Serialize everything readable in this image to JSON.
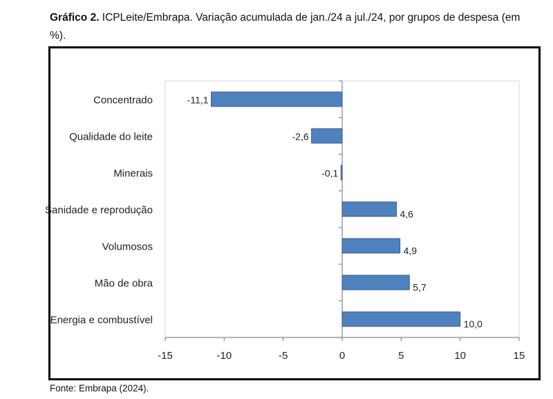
{
  "caption": {
    "label": "Gráfico 2.",
    "text": " ICPLeite/Embrapa. Variação acumulada de jan./24 a jul./24, por grupos de despesa (em %)."
  },
  "source": "Fonte: Embrapa (2024).",
  "colors": {
    "bar": "#4f81bd",
    "bar_border": "#385d8a"
  },
  "chart_data": {
    "type": "bar",
    "orientation": "horizontal",
    "categories": [
      "Concentrado",
      "Qualidade do leite",
      "Minerais",
      "Sanidade e reprodução",
      "Volumosos",
      "Mão de obra",
      "Energia e combustível"
    ],
    "values": [
      -11.1,
      -2.6,
      -0.1,
      4.6,
      4.9,
      5.7,
      10.0
    ],
    "data_labels": [
      "-11,1",
      "-2,6",
      "-0,1",
      "4,6",
      "4,9",
      "5,7",
      "10,0"
    ],
    "xlim": [
      -15,
      15
    ],
    "xticks": [
      -15,
      -10,
      -5,
      0,
      5,
      10,
      15
    ],
    "xtick_labels": [
      "-15",
      "-10",
      "-5",
      "0",
      "5",
      "10",
      "15"
    ],
    "title": "",
    "xlabel": "",
    "ylabel": "",
    "grid": false,
    "legend": "none"
  }
}
